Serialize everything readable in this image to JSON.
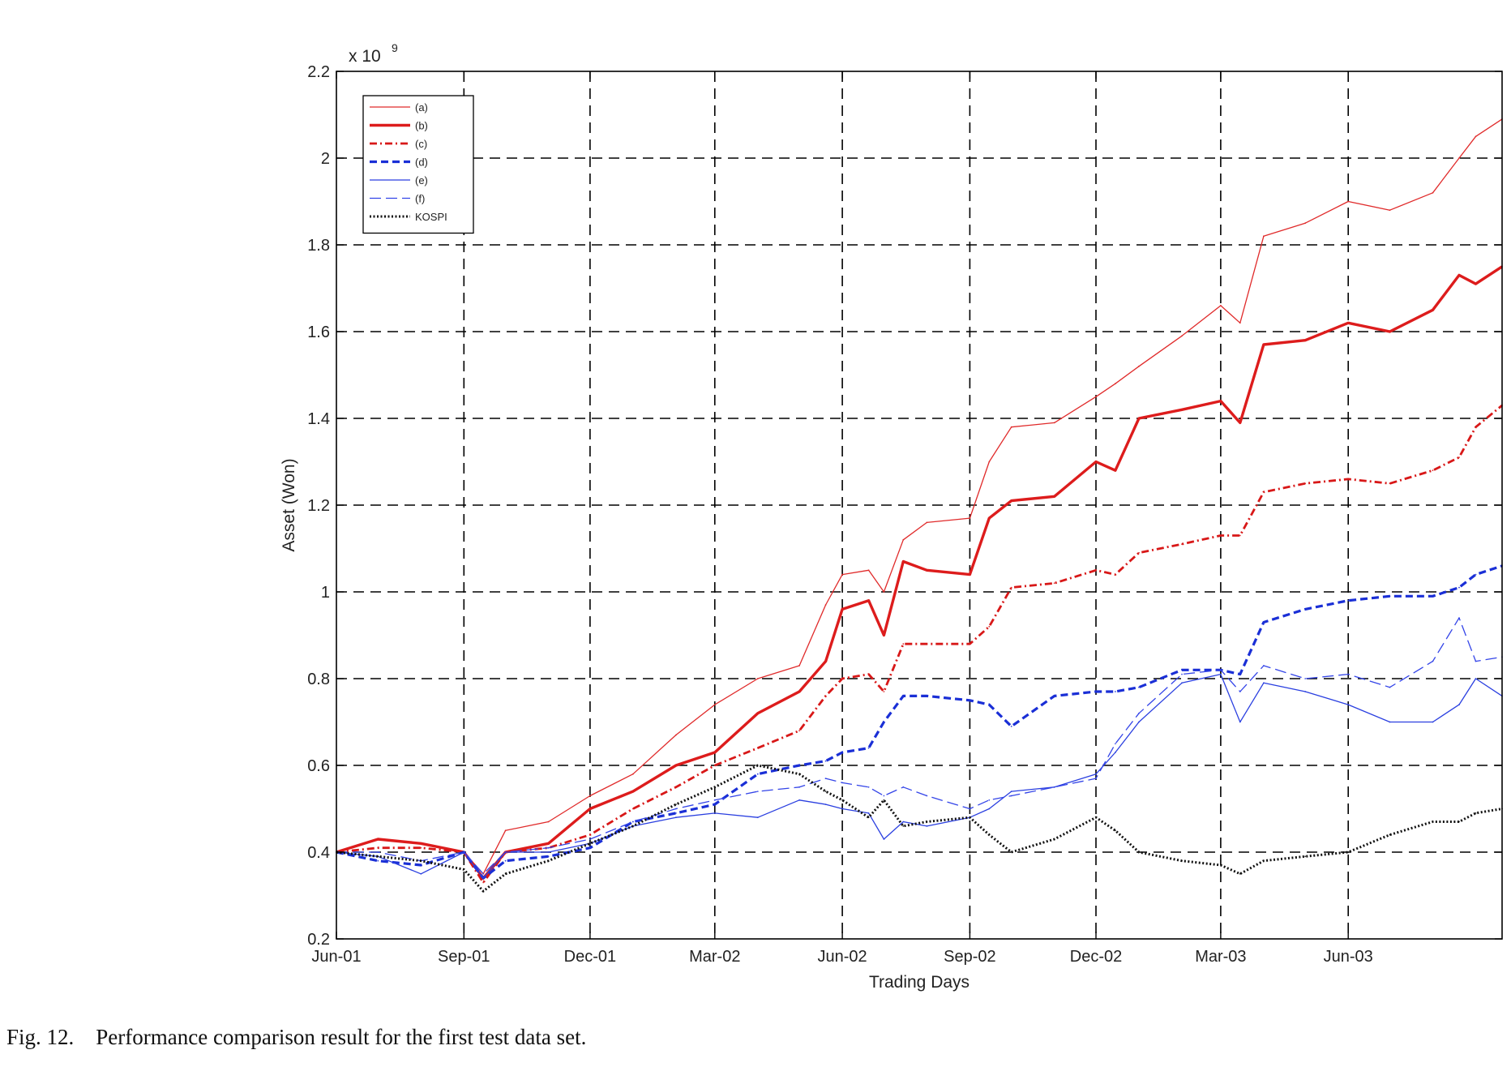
{
  "caption": "Fig. 12.    Performance comparison result for the first test data set.",
  "chart_data": {
    "type": "line",
    "title": "",
    "xlabel": "Trading Days",
    "ylabel": "Asset (Won)",
    "y_multiplier_label": "x 10",
    "y_multiplier_exp": "9",
    "ylim": [
      0.2,
      2.2
    ],
    "yticks": [
      0.2,
      0.4,
      0.6,
      0.8,
      1,
      1.2,
      1.4,
      1.6,
      1.8,
      2,
      2.2
    ],
    "ytick_labels": [
      "0.2",
      "0.4",
      "0.6",
      "0.8",
      "1",
      "1.2",
      "1.4",
      "1.6",
      "1.8",
      "2",
      "2.2"
    ],
    "xlim": [
      "2001-06-01",
      "2003-09-20"
    ],
    "xticks": [
      "2001-06-01",
      "2001-09-01",
      "2001-12-01",
      "2002-03-01",
      "2002-06-01",
      "2002-09-01",
      "2002-12-01",
      "2003-03-01",
      "2003-06-01"
    ],
    "xtick_labels": [
      "Jun-01",
      "Sep-01",
      "Dec-01",
      "Mar-02",
      "Jun-02",
      "Sep-02",
      "Dec-02",
      "Mar-03",
      "Jun-03"
    ],
    "grid": true,
    "legend_position": "top-left",
    "series": [
      {
        "name": "(a)",
        "color": "#e02a2a",
        "style": "thin-solid",
        "x": [
          "2001-06-01",
          "2001-07-01",
          "2001-08-01",
          "2001-09-01",
          "2001-09-15",
          "2001-10-01",
          "2001-11-01",
          "2001-12-01",
          "2002-01-01",
          "2002-02-01",
          "2002-03-01",
          "2002-04-01",
          "2002-05-01",
          "2002-05-20",
          "2002-06-01",
          "2002-06-20",
          "2002-07-01",
          "2002-07-15",
          "2002-08-01",
          "2002-09-01",
          "2002-09-15",
          "2002-10-01",
          "2002-11-01",
          "2002-12-01",
          "2002-12-15",
          "2003-01-01",
          "2003-02-01",
          "2003-03-01",
          "2003-03-15",
          "2003-04-01",
          "2003-05-01",
          "2003-06-01",
          "2003-07-01",
          "2003-08-01",
          "2003-08-20",
          "2003-09-01",
          "2003-09-20"
        ],
        "y": [
          0.4,
          0.43,
          0.42,
          0.4,
          0.35,
          0.45,
          0.47,
          0.53,
          0.58,
          0.67,
          0.74,
          0.8,
          0.83,
          0.97,
          1.04,
          1.05,
          1.0,
          1.12,
          1.16,
          1.17,
          1.3,
          1.38,
          1.39,
          1.45,
          1.48,
          1.52,
          1.59,
          1.66,
          1.62,
          1.82,
          1.85,
          1.9,
          1.88,
          1.92,
          2.0,
          2.05,
          2.09
        ]
      },
      {
        "name": "(b)",
        "color": "#dd1c1c",
        "style": "thick-solid",
        "x": [
          "2001-06-01",
          "2001-07-01",
          "2001-08-01",
          "2001-09-01",
          "2001-09-15",
          "2001-10-01",
          "2001-11-01",
          "2001-12-01",
          "2002-01-01",
          "2002-02-01",
          "2002-03-01",
          "2002-04-01",
          "2002-05-01",
          "2002-05-20",
          "2002-06-01",
          "2002-06-20",
          "2002-07-01",
          "2002-07-15",
          "2002-08-01",
          "2002-09-01",
          "2002-09-15",
          "2002-10-01",
          "2002-11-01",
          "2002-12-01",
          "2002-12-15",
          "2003-01-01",
          "2003-02-01",
          "2003-03-01",
          "2003-03-15",
          "2003-04-01",
          "2003-05-01",
          "2003-06-01",
          "2003-07-01",
          "2003-08-01",
          "2003-08-20",
          "2003-09-01",
          "2003-09-20"
        ],
        "y": [
          0.4,
          0.43,
          0.42,
          0.4,
          0.34,
          0.4,
          0.42,
          0.5,
          0.54,
          0.6,
          0.63,
          0.72,
          0.77,
          0.84,
          0.96,
          0.98,
          0.9,
          1.07,
          1.05,
          1.04,
          1.17,
          1.21,
          1.22,
          1.3,
          1.28,
          1.4,
          1.42,
          1.44,
          1.39,
          1.57,
          1.58,
          1.62,
          1.6,
          1.65,
          1.73,
          1.71,
          1.75
        ]
      },
      {
        "name": "(c)",
        "color": "#d81818",
        "style": "dash-dot",
        "x": [
          "2001-06-01",
          "2001-07-01",
          "2001-08-01",
          "2001-09-01",
          "2001-09-15",
          "2001-10-01",
          "2001-11-01",
          "2001-12-01",
          "2002-01-01",
          "2002-02-01",
          "2002-03-01",
          "2002-04-01",
          "2002-05-01",
          "2002-05-20",
          "2002-06-01",
          "2002-06-20",
          "2002-07-01",
          "2002-07-15",
          "2002-08-01",
          "2002-09-01",
          "2002-09-15",
          "2002-10-01",
          "2002-11-01",
          "2002-12-01",
          "2002-12-15",
          "2003-01-01",
          "2003-02-01",
          "2003-03-01",
          "2003-03-15",
          "2003-04-01",
          "2003-05-01",
          "2003-06-01",
          "2003-07-01",
          "2003-08-01",
          "2003-08-20",
          "2003-09-01",
          "2003-09-20"
        ],
        "y": [
          0.4,
          0.41,
          0.41,
          0.4,
          0.33,
          0.4,
          0.41,
          0.44,
          0.5,
          0.55,
          0.6,
          0.64,
          0.68,
          0.76,
          0.8,
          0.81,
          0.77,
          0.88,
          0.88,
          0.88,
          0.92,
          1.01,
          1.02,
          1.05,
          1.04,
          1.09,
          1.11,
          1.13,
          1.13,
          1.23,
          1.25,
          1.26,
          1.25,
          1.28,
          1.31,
          1.38,
          1.43
        ]
      },
      {
        "name": "(d)",
        "color": "#1a2fd6",
        "style": "dashed-thick",
        "x": [
          "2001-06-01",
          "2001-07-01",
          "2001-08-01",
          "2001-09-01",
          "2001-09-15",
          "2001-10-01",
          "2001-11-01",
          "2001-12-01",
          "2002-01-01",
          "2002-02-01",
          "2002-03-01",
          "2002-04-01",
          "2002-05-01",
          "2002-05-20",
          "2002-06-01",
          "2002-06-20",
          "2002-07-01",
          "2002-07-15",
          "2002-08-01",
          "2002-09-01",
          "2002-09-15",
          "2002-10-01",
          "2002-11-01",
          "2002-12-01",
          "2002-12-15",
          "2003-01-01",
          "2003-02-01",
          "2003-03-01",
          "2003-03-15",
          "2003-04-01",
          "2003-05-01",
          "2003-06-01",
          "2003-07-01",
          "2003-08-01",
          "2003-08-20",
          "2003-09-01",
          "2003-09-20"
        ],
        "y": [
          0.4,
          0.38,
          0.37,
          0.4,
          0.34,
          0.38,
          0.39,
          0.41,
          0.47,
          0.49,
          0.51,
          0.58,
          0.6,
          0.61,
          0.63,
          0.64,
          0.7,
          0.76,
          0.76,
          0.75,
          0.74,
          0.69,
          0.76,
          0.77,
          0.77,
          0.78,
          0.82,
          0.82,
          0.81,
          0.93,
          0.96,
          0.98,
          0.99,
          0.99,
          1.01,
          1.04,
          1.06
        ]
      },
      {
        "name": "(e)",
        "color": "#2a3fe0",
        "style": "thin-solid",
        "x": [
          "2001-06-01",
          "2001-07-01",
          "2001-08-01",
          "2001-09-01",
          "2001-09-15",
          "2001-10-01",
          "2001-11-01",
          "2001-12-01",
          "2002-01-01",
          "2002-02-01",
          "2002-03-01",
          "2002-04-01",
          "2002-05-01",
          "2002-05-20",
          "2002-06-01",
          "2002-06-20",
          "2002-07-01",
          "2002-07-15",
          "2002-08-01",
          "2002-09-01",
          "2002-09-15",
          "2002-10-01",
          "2002-11-01",
          "2002-12-01",
          "2002-12-15",
          "2003-01-01",
          "2003-02-01",
          "2003-03-01",
          "2003-03-15",
          "2003-04-01",
          "2003-05-01",
          "2003-06-01",
          "2003-07-01",
          "2003-08-01",
          "2003-08-20",
          "2003-09-01",
          "2003-09-20"
        ],
        "y": [
          0.4,
          0.39,
          0.35,
          0.4,
          0.34,
          0.4,
          0.4,
          0.42,
          0.46,
          0.48,
          0.49,
          0.48,
          0.52,
          0.51,
          0.5,
          0.49,
          0.43,
          0.47,
          0.46,
          0.48,
          0.5,
          0.54,
          0.55,
          0.58,
          0.63,
          0.7,
          0.79,
          0.81,
          0.7,
          0.79,
          0.77,
          0.74,
          0.7,
          0.7,
          0.74,
          0.8,
          0.76
        ]
      },
      {
        "name": "(f)",
        "color": "#3344e8",
        "style": "thin-dashed",
        "x": [
          "2001-06-01",
          "2001-07-01",
          "2001-08-01",
          "2001-09-01",
          "2001-09-15",
          "2001-10-01",
          "2001-11-01",
          "2001-12-01",
          "2002-01-01",
          "2002-02-01",
          "2002-03-01",
          "2002-04-01",
          "2002-05-01",
          "2002-05-20",
          "2002-06-01",
          "2002-06-20",
          "2002-07-01",
          "2002-07-15",
          "2002-08-01",
          "2002-09-01",
          "2002-09-15",
          "2002-10-01",
          "2002-11-01",
          "2002-12-01",
          "2002-12-15",
          "2003-01-01",
          "2003-02-01",
          "2003-03-01",
          "2003-03-15",
          "2003-04-01",
          "2003-05-01",
          "2003-06-01",
          "2003-07-01",
          "2003-08-01",
          "2003-08-20",
          "2003-09-01",
          "2003-09-20"
        ],
        "y": [
          0.4,
          0.4,
          0.38,
          0.4,
          0.35,
          0.4,
          0.41,
          0.43,
          0.47,
          0.5,
          0.52,
          0.54,
          0.55,
          0.57,
          0.56,
          0.55,
          0.53,
          0.55,
          0.53,
          0.5,
          0.52,
          0.53,
          0.55,
          0.57,
          0.65,
          0.72,
          0.81,
          0.82,
          0.77,
          0.83,
          0.8,
          0.81,
          0.78,
          0.84,
          0.94,
          0.84,
          0.85
        ]
      },
      {
        "name": "KOSPI",
        "color": "#111111",
        "style": "dotted",
        "x": [
          "2001-06-01",
          "2001-07-01",
          "2001-08-01",
          "2001-09-01",
          "2001-09-15",
          "2001-10-01",
          "2001-11-01",
          "2001-12-01",
          "2002-01-01",
          "2002-02-01",
          "2002-03-01",
          "2002-04-01",
          "2002-05-01",
          "2002-05-20",
          "2002-06-01",
          "2002-06-20",
          "2002-07-01",
          "2002-07-15",
          "2002-08-01",
          "2002-09-01",
          "2002-09-15",
          "2002-10-01",
          "2002-11-01",
          "2002-12-01",
          "2002-12-15",
          "2003-01-01",
          "2003-02-01",
          "2003-03-01",
          "2003-03-15",
          "2003-04-01",
          "2003-05-01",
          "2003-06-01",
          "2003-07-01",
          "2003-08-01",
          "2003-08-20",
          "2003-09-01",
          "2003-09-20"
        ],
        "y": [
          0.4,
          0.39,
          0.38,
          0.36,
          0.31,
          0.35,
          0.38,
          0.42,
          0.46,
          0.51,
          0.55,
          0.6,
          0.58,
          0.54,
          0.52,
          0.48,
          0.52,
          0.46,
          0.47,
          0.48,
          0.44,
          0.4,
          0.43,
          0.48,
          0.45,
          0.4,
          0.38,
          0.37,
          0.35,
          0.38,
          0.39,
          0.4,
          0.44,
          0.47,
          0.47,
          0.49,
          0.5
        ]
      }
    ]
  }
}
